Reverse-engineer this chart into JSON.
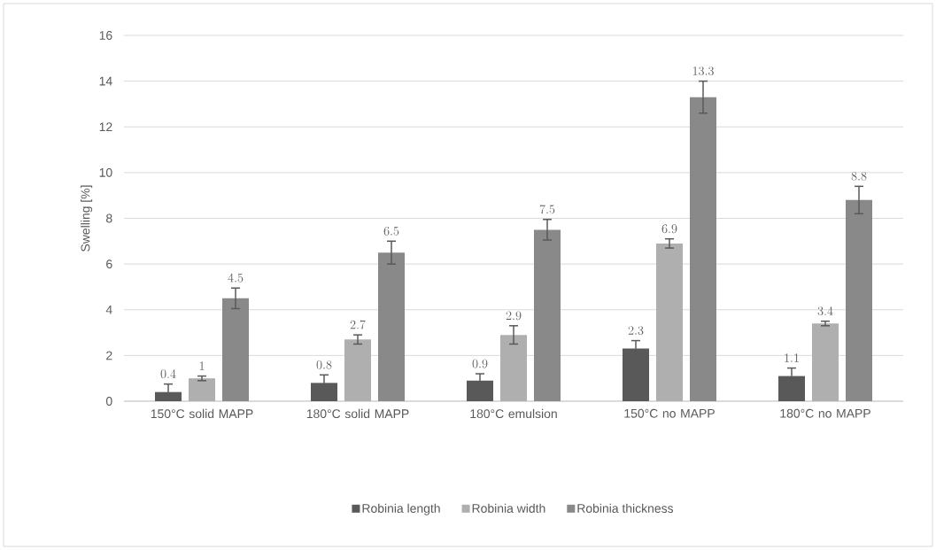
{
  "chart_data": {
    "type": "bar",
    "ylabel": "Swelling [%]",
    "categories": [
      "150°C solid MAPP",
      "180°C solid MAPP",
      "180°C emulsion",
      "150°C no MAPP",
      "180°C no MAPP"
    ],
    "series": [
      {
        "name": "Robinia length",
        "color": "#595959",
        "values": [
          0.4,
          0.8,
          0.9,
          2.3,
          1.1
        ],
        "errors": [
          0.35,
          0.35,
          0.3,
          0.35,
          0.35
        ]
      },
      {
        "name": "Robinia width",
        "color": "#afafaf",
        "values": [
          1,
          2.7,
          2.9,
          6.9,
          3.4
        ],
        "errors": [
          0.1,
          0.2,
          0.4,
          0.2,
          0.1
        ]
      },
      {
        "name": "Robinia thickness",
        "color": "#898989",
        "values": [
          4.5,
          6.5,
          7.5,
          13.3,
          8.8
        ],
        "errors": [
          0.45,
          0.5,
          0.45,
          0.7,
          0.6
        ]
      }
    ],
    "ylim": [
      0,
      16
    ],
    "yticks": [
      0,
      2,
      4,
      6,
      8,
      10,
      12,
      14,
      16
    ],
    "grid": "y",
    "legend": "bottom",
    "data_labels": true
  }
}
